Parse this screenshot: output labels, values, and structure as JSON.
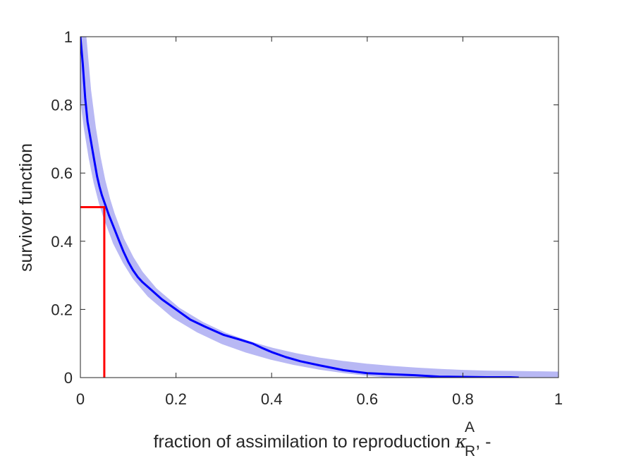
{
  "chart_data": {
    "type": "line",
    "xlabel": "fraction of assimilation to reproduction",
    "xlabel_symbol": "κ",
    "xlabel_superscript": "A",
    "xlabel_subscript": "R",
    "xlabel_suffix": ", -",
    "ylabel": "survivor function",
    "xlim": [
      0,
      1
    ],
    "ylim": [
      0,
      1
    ],
    "xticks": [
      0,
      0.2,
      0.4,
      0.6,
      0.8,
      1
    ],
    "yticks": [
      0,
      0.2,
      0.4,
      0.6,
      0.8,
      1
    ],
    "xtick_labels": [
      "0",
      "0.2",
      "0.4",
      "0.6",
      "0.8",
      "1"
    ],
    "ytick_labels": [
      "0",
      "0.2",
      "0.4",
      "0.6",
      "0.8",
      "1"
    ],
    "grid": false,
    "series": [
      {
        "role": "fitted band",
        "color": "#b8b8f4",
        "x": [
          0,
          0.01,
          0.02,
          0.03,
          0.04,
          0.05,
          0.06,
          0.08,
          0.1,
          0.12,
          0.15,
          0.2,
          0.25,
          0.3,
          0.35,
          0.4,
          0.45,
          0.5,
          0.55,
          0.6,
          0.65,
          0.7,
          0.75,
          0.8,
          0.85,
          0.9,
          0.95,
          1.0
        ],
        "y": [
          1.0,
          0.84,
          0.73,
          0.645,
          0.575,
          0.52,
          0.475,
          0.4,
          0.345,
          0.3,
          0.25,
          0.19,
          0.148,
          0.115,
          0.09,
          0.07,
          0.054,
          0.041,
          0.031,
          0.023,
          0.017,
          0.012,
          0.008,
          0.005,
          0.003,
          0.002,
          0.001,
          0.0
        ]
      },
      {
        "role": "empirical",
        "color": "#0000ff",
        "x": [
          0.0,
          0.005,
          0.01,
          0.015,
          0.02,
          0.025,
          0.03,
          0.035,
          0.04,
          0.045,
          0.05,
          0.06,
          0.07,
          0.08,
          0.09,
          0.1,
          0.11,
          0.12,
          0.13,
          0.15,
          0.17,
          0.2,
          0.23,
          0.26,
          0.3,
          0.33,
          0.36,
          0.38,
          0.4,
          0.43,
          0.46,
          0.5,
          0.55,
          0.6,
          0.65,
          0.7,
          0.75,
          0.8,
          0.85,
          0.9,
          0.917
        ],
        "y": [
          1.0,
          0.92,
          0.82,
          0.75,
          0.71,
          0.67,
          0.63,
          0.59,
          0.56,
          0.535,
          0.515,
          0.475,
          0.44,
          0.405,
          0.37,
          0.34,
          0.315,
          0.295,
          0.28,
          0.255,
          0.23,
          0.2,
          0.17,
          0.15,
          0.125,
          0.113,
          0.1,
          0.087,
          0.075,
          0.06,
          0.048,
          0.036,
          0.022,
          0.013,
          0.01,
          0.007,
          0.003,
          0.002,
          0.001,
          0.001,
          0.0
        ]
      }
    ],
    "annotation": {
      "color": "#ff0000",
      "median_x": 0.05,
      "median_y": 0.5
    }
  }
}
